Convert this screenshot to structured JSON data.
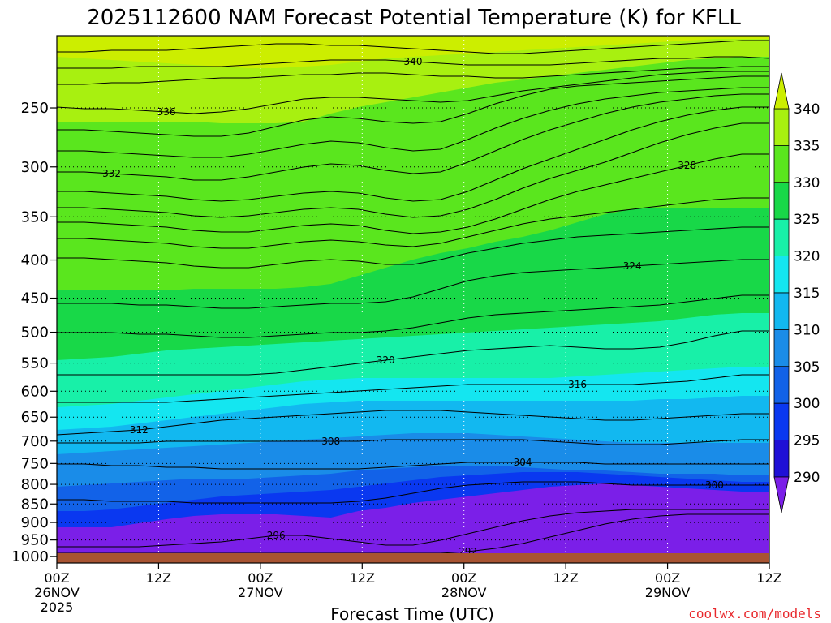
{
  "chart_data": {
    "type": "heatmap",
    "title": "2025112600 NAM Forecast Potential Temperature (K) for KFLL",
    "xlabel": "Forecast Time (UTC)",
    "ylabel": "",
    "credit": "coolwx.com/models",
    "x_ticks": [
      {
        "hour": 0,
        "line1": "00Z",
        "line2": "26NOV",
        "line3": "2025"
      },
      {
        "hour": 12,
        "line1": "12Z",
        "line2": "",
        "line3": ""
      },
      {
        "hour": 24,
        "line1": "00Z",
        "line2": "27NOV",
        "line3": ""
      },
      {
        "hour": 36,
        "line1": "12Z",
        "line2": "",
        "line3": ""
      },
      {
        "hour": 48,
        "line1": "00Z",
        "line2": "28NOV",
        "line3": ""
      },
      {
        "hour": 60,
        "line1": "12Z",
        "line2": "",
        "line3": ""
      },
      {
        "hour": 72,
        "line1": "00Z",
        "line2": "29NOV",
        "line3": ""
      },
      {
        "hour": 84,
        "line1": "12Z",
        "line2": "",
        "line3": ""
      }
    ],
    "xlim_hours": [
      0,
      84
    ],
    "y_ticks": [
      "250",
      "300",
      "350",
      "400",
      "450",
      "500",
      "550",
      "600",
      "650",
      "700",
      "750",
      "800",
      "850",
      "900",
      "950",
      "1000"
    ],
    "ylim_hpa": [
      1020,
      200
    ],
    "y_scale": "log-pressure",
    "grid": true,
    "colorbar": {
      "levels": [
        "290",
        "295",
        "300",
        "305",
        "310",
        "315",
        "320",
        "325",
        "330",
        "335",
        "340"
      ],
      "colors": [
        "#7b1fe8",
        "#1f10d6",
        "#0a38f0",
        "#1262e8",
        "#1a8ce8",
        "#12b8f0",
        "#14e6f0",
        "#18f0a8",
        "#18d848",
        "#5ae61e",
        "#a8f010",
        "#ccee00"
      ]
    },
    "fill_bands": [
      {
        "level": 1000,
        "top": [
          650,
          650,
          650,
          645,
          640,
          636,
          634,
          634,
          634,
          636,
          638,
          630,
          626,
          620,
          616,
          612,
          608,
          604,
          600,
          598,
          596,
          598,
          600,
          602,
          604,
          606,
          606
        ]
      },
      {
        "level": 295,
        "top": [
          630,
          630,
          628,
          624,
          620,
          616,
          612,
          610,
          608,
          606,
          604,
          600,
          596,
          592,
          588,
          586,
          584,
          582,
          582,
          582,
          584,
          586,
          588,
          590,
          592,
          594,
          594
        ]
      },
      {
        "level": 300,
        "top": [
          600,
          598,
          596,
          594,
          592,
          590,
          590,
          590,
          588,
          586,
          584,
          580,
          578,
          576,
          574,
          574,
          574,
          576,
          578,
          580,
          580,
          582,
          584,
          584,
          584,
          586,
          586
        ]
      },
      {
        "level": 305,
        "top": [
          560,
          558,
          556,
          554,
          552,
          550,
          548,
          546,
          544,
          542,
          540,
          538,
          536,
          534,
          534,
          534,
          536,
          538,
          540,
          542,
          544,
          546,
          546,
          546,
          546,
          546,
          546
        ]
      },
      {
        "level": 310,
        "top": [
          530,
          528,
          526,
          522,
          518,
          514,
          510,
          506,
          502,
          498,
          496,
          494,
          494,
          494,
          494,
          494,
          494,
          494,
          494,
          494,
          494,
          494,
          492,
          492,
          490,
          488,
          488
        ]
      },
      {
        "level": 315,
        "top": [
          502,
          500,
          498,
          494,
          490,
          486,
          482,
          478,
          474,
          470,
          468,
          466,
          466,
          466,
          466,
          466,
          466,
          466,
          466,
          464,
          462,
          460,
          458,
          456,
          454,
          452,
          452
        ]
      },
      {
        "level": 320,
        "top": [
          444,
          442,
          440,
          436,
          432,
          430,
          428,
          426,
          424,
          422,
          420,
          418,
          416,
          414,
          412,
          410,
          408,
          406,
          404,
          402,
          400,
          398,
          396,
          392,
          388,
          386,
          386
        ]
      },
      {
        "level": 325,
        "top": [
          358,
          358,
          358,
          358,
          358,
          356,
          356,
          356,
          356,
          354,
          350,
          340,
          330,
          320,
          312,
          306,
          298,
          292,
          284,
          274,
          264,
          258,
          256,
          256,
          256,
          256,
          256
        ]
      },
      {
        "level": 330,
        "top": [
          150,
          150,
          150,
          150,
          150,
          150,
          152,
          152,
          152,
          150,
          140,
          132,
          126,
          120,
          114,
          108,
          102,
          98,
          94,
          90,
          86,
          82,
          78,
          74,
          72,
          70,
          70
        ]
      },
      {
        "level": 335,
        "top": [
          70,
          72,
          74,
          76,
          78,
          80,
          82,
          84,
          84,
          82,
          80,
          76,
          72,
          70,
          68,
          66,
          64,
          62,
          60,
          58,
          56,
          54,
          52,
          50,
          48,
          48,
          48
        ]
      }
    ],
    "contours": [
      {
        "label": "",
        "y": [
          64,
          64,
          62,
          62,
          62,
          60,
          58,
          56,
          54,
          54,
          56,
          56,
          58,
          60,
          62,
          64,
          66,
          66,
          64,
          62,
          60,
          58,
          56,
          54,
          52,
          50,
          50
        ]
      },
      {
        "label": "340",
        "y": [
          84,
          84,
          84,
          82,
          82,
          82,
          82,
          80,
          78,
          76,
          74,
          74,
          74,
          76,
          78,
          80,
          80,
          80,
          80,
          78,
          76,
          74,
          72,
          72,
          70,
          70,
          72
        ]
      },
      {
        "label": "",
        "y": [
          104,
          104,
          102,
          102,
          100,
          98,
          96,
          96,
          94,
          92,
          92,
          90,
          90,
          92,
          94,
          94,
          96,
          96,
          94,
          92,
          90,
          88,
          86,
          84,
          84,
          82,
          82
        ]
      },
      {
        "label": "336",
        "y": [
          132,
          134,
          134,
          136,
          138,
          140,
          138,
          134,
          128,
          122,
          120,
          120,
          122,
          124,
          126,
          124,
          118,
          112,
          108,
          104,
          100,
          96,
          92,
          90,
          88,
          88,
          88
        ]
      },
      {
        "label": "",
        "y": [
          160,
          160,
          162,
          164,
          166,
          168,
          168,
          164,
          156,
          148,
          144,
          146,
          150,
          152,
          150,
          140,
          128,
          118,
          110,
          106,
          104,
          102,
          100,
          98,
          96,
          94,
          94
        ]
      },
      {
        "label": "",
        "y": [
          186,
          186,
          188,
          190,
          192,
          194,
          194,
          190,
          184,
          178,
          174,
          176,
          182,
          186,
          184,
          172,
          158,
          146,
          136,
          128,
          122,
          118,
          114,
          112,
          110,
          108,
          108
        ]
      },
      {
        "label": "332",
        "y": [
          212,
          212,
          214,
          216,
          218,
          222,
          222,
          218,
          212,
          206,
          202,
          204,
          210,
          214,
          212,
          200,
          186,
          172,
          160,
          150,
          140,
          132,
          126,
          122,
          118,
          116,
          116
        ]
      },
      {
        "label": "",
        "y": [
          236,
          236,
          238,
          240,
          242,
          246,
          248,
          246,
          242,
          238,
          236,
          238,
          244,
          248,
          246,
          236,
          222,
          208,
          196,
          184,
          172,
          160,
          150,
          142,
          136,
          132,
          132
        ]
      },
      {
        "label": "",
        "y": [
          256,
          256,
          258,
          260,
          262,
          266,
          268,
          266,
          262,
          258,
          256,
          258,
          264,
          268,
          266,
          258,
          246,
          232,
          220,
          210,
          200,
          188,
          176,
          166,
          158,
          152,
          152
        ]
      },
      {
        "label": "328",
        "y": [
          274,
          274,
          276,
          278,
          280,
          284,
          286,
          286,
          282,
          278,
          276,
          278,
          284,
          288,
          286,
          280,
          270,
          258,
          246,
          236,
          228,
          220,
          212,
          204,
          196,
          190,
          190
        ]
      },
      {
        "label": "",
        "y": [
          294,
          294,
          296,
          298,
          300,
          304,
          306,
          306,
          302,
          298,
          296,
          298,
          302,
          304,
          300,
          292,
          284,
          276,
          270,
          266,
          262,
          258,
          254,
          250,
          246,
          244,
          244
        ]
      },
      {
        "label": "",
        "y": [
          318,
          318,
          320,
          322,
          324,
          328,
          330,
          330,
          326,
          322,
          320,
          322,
          326,
          326,
          320,
          312,
          306,
          300,
          296,
          292,
          290,
          288,
          286,
          284,
          282,
          280,
          280
        ]
      },
      {
        "label": "324",
        "y": [
          374,
          374,
          374,
          376,
          376,
          378,
          380,
          380,
          378,
          376,
          374,
          374,
          372,
          366,
          356,
          346,
          340,
          336,
          334,
          332,
          330,
          328,
          326,
          324,
          322,
          320,
          320
        ]
      },
      {
        "label": "",
        "y": [
          410,
          410,
          410,
          412,
          412,
          414,
          416,
          416,
          414,
          412,
          410,
          410,
          408,
          404,
          398,
          392,
          388,
          386,
          384,
          382,
          380,
          378,
          376,
          372,
          368,
          364,
          364
        ]
      },
      {
        "label": "320",
        "y": [
          462,
          462,
          462,
          462,
          462,
          462,
          462,
          462,
          460,
          456,
          452,
          448,
          444,
          440,
          436,
          432,
          430,
          428,
          426,
          428,
          430,
          430,
          428,
          422,
          414,
          408,
          408
        ]
      },
      {
        "label": "316",
        "y": [
          496,
          496,
          496,
          496,
          496,
          494,
          492,
          490,
          488,
          486,
          484,
          482,
          480,
          478,
          476,
          474,
          474,
          474,
          474,
          474,
          474,
          474,
          472,
          470,
          466,
          462,
          462
        ]
      },
      {
        "label": "312",
        "y": [
          536,
          534,
          532,
          530,
          526,
          522,
          518,
          516,
          514,
          512,
          510,
          508,
          506,
          506,
          506,
          508,
          510,
          512,
          514,
          516,
          518,
          518,
          516,
          514,
          512,
          510,
          510
        ]
      },
      {
        "label": "308",
        "y": [
          546,
          546,
          546,
          546,
          544,
          544,
          544,
          544,
          544,
          544,
          544,
          544,
          542,
          542,
          542,
          542,
          542,
          542,
          544,
          546,
          548,
          548,
          548,
          546,
          544,
          542,
          542
        ]
      },
      {
        "label": "304",
        "y": [
          572,
          572,
          574,
          574,
          576,
          576,
          578,
          578,
          578,
          578,
          578,
          578,
          576,
          574,
          572,
          570,
          570,
          570,
          570,
          570,
          572,
          572,
          572,
          572,
          572,
          572,
          572
        ]
      },
      {
        "label": "300",
        "y": [
          616,
          616,
          618,
          618,
          618,
          620,
          620,
          620,
          620,
          620,
          620,
          618,
          614,
          608,
          602,
          598,
          596,
          594,
          594,
          594,
          596,
          598,
          598,
          598,
          598,
          598,
          598
        ]
      },
      {
        "label": "296",
        "y": [
          674,
          674,
          674,
          674,
          672,
          670,
          668,
          664,
          660,
          660,
          664,
          668,
          672,
          672,
          666,
          658,
          650,
          642,
          636,
          632,
          630,
          628,
          628,
          628,
          628,
          628,
          628
        ]
      },
      {
        "label": "292",
        "y": [
          682,
          682,
          682,
          682,
          682,
          682,
          682,
          682,
          682,
          682,
          682,
          682,
          682,
          682,
          682,
          680,
          676,
          670,
          662,
          654,
          646,
          640,
          636,
          634,
          634,
          634,
          634
        ]
      }
    ]
  }
}
